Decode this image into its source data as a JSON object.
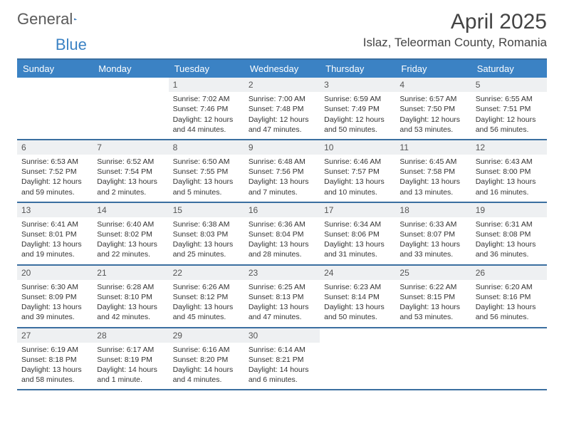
{
  "brand": {
    "part1": "General",
    "part2": "Blue"
  },
  "title": "April 2025",
  "location": "Islaz, Teleorman County, Romania",
  "colors": {
    "header_bg": "#3b82c4",
    "header_fg": "#ffffff",
    "rule": "#3b6fa0",
    "numbar": "#eef0f2",
    "text": "#333333",
    "brand_gray": "#5a5a5a",
    "brand_blue": "#3b82c4"
  },
  "day_names": [
    "Sunday",
    "Monday",
    "Tuesday",
    "Wednesday",
    "Thursday",
    "Friday",
    "Saturday"
  ],
  "weeks": [
    [
      null,
      null,
      {
        "n": "1",
        "sr": "7:02 AM",
        "ss": "7:46 PM",
        "dl": "12 hours and 44 minutes."
      },
      {
        "n": "2",
        "sr": "7:00 AM",
        "ss": "7:48 PM",
        "dl": "12 hours and 47 minutes."
      },
      {
        "n": "3",
        "sr": "6:59 AM",
        "ss": "7:49 PM",
        "dl": "12 hours and 50 minutes."
      },
      {
        "n": "4",
        "sr": "6:57 AM",
        "ss": "7:50 PM",
        "dl": "12 hours and 53 minutes."
      },
      {
        "n": "5",
        "sr": "6:55 AM",
        "ss": "7:51 PM",
        "dl": "12 hours and 56 minutes."
      }
    ],
    [
      {
        "n": "6",
        "sr": "6:53 AM",
        "ss": "7:52 PM",
        "dl": "12 hours and 59 minutes."
      },
      {
        "n": "7",
        "sr": "6:52 AM",
        "ss": "7:54 PM",
        "dl": "13 hours and 2 minutes."
      },
      {
        "n": "8",
        "sr": "6:50 AM",
        "ss": "7:55 PM",
        "dl": "13 hours and 5 minutes."
      },
      {
        "n": "9",
        "sr": "6:48 AM",
        "ss": "7:56 PM",
        "dl": "13 hours and 7 minutes."
      },
      {
        "n": "10",
        "sr": "6:46 AM",
        "ss": "7:57 PM",
        "dl": "13 hours and 10 minutes."
      },
      {
        "n": "11",
        "sr": "6:45 AM",
        "ss": "7:58 PM",
        "dl": "13 hours and 13 minutes."
      },
      {
        "n": "12",
        "sr": "6:43 AM",
        "ss": "8:00 PM",
        "dl": "13 hours and 16 minutes."
      }
    ],
    [
      {
        "n": "13",
        "sr": "6:41 AM",
        "ss": "8:01 PM",
        "dl": "13 hours and 19 minutes."
      },
      {
        "n": "14",
        "sr": "6:40 AM",
        "ss": "8:02 PM",
        "dl": "13 hours and 22 minutes."
      },
      {
        "n": "15",
        "sr": "6:38 AM",
        "ss": "8:03 PM",
        "dl": "13 hours and 25 minutes."
      },
      {
        "n": "16",
        "sr": "6:36 AM",
        "ss": "8:04 PM",
        "dl": "13 hours and 28 minutes."
      },
      {
        "n": "17",
        "sr": "6:34 AM",
        "ss": "8:06 PM",
        "dl": "13 hours and 31 minutes."
      },
      {
        "n": "18",
        "sr": "6:33 AM",
        "ss": "8:07 PM",
        "dl": "13 hours and 33 minutes."
      },
      {
        "n": "19",
        "sr": "6:31 AM",
        "ss": "8:08 PM",
        "dl": "13 hours and 36 minutes."
      }
    ],
    [
      {
        "n": "20",
        "sr": "6:30 AM",
        "ss": "8:09 PM",
        "dl": "13 hours and 39 minutes."
      },
      {
        "n": "21",
        "sr": "6:28 AM",
        "ss": "8:10 PM",
        "dl": "13 hours and 42 minutes."
      },
      {
        "n": "22",
        "sr": "6:26 AM",
        "ss": "8:12 PM",
        "dl": "13 hours and 45 minutes."
      },
      {
        "n": "23",
        "sr": "6:25 AM",
        "ss": "8:13 PM",
        "dl": "13 hours and 47 minutes."
      },
      {
        "n": "24",
        "sr": "6:23 AM",
        "ss": "8:14 PM",
        "dl": "13 hours and 50 minutes."
      },
      {
        "n": "25",
        "sr": "6:22 AM",
        "ss": "8:15 PM",
        "dl": "13 hours and 53 minutes."
      },
      {
        "n": "26",
        "sr": "6:20 AM",
        "ss": "8:16 PM",
        "dl": "13 hours and 56 minutes."
      }
    ],
    [
      {
        "n": "27",
        "sr": "6:19 AM",
        "ss": "8:18 PM",
        "dl": "13 hours and 58 minutes."
      },
      {
        "n": "28",
        "sr": "6:17 AM",
        "ss": "8:19 PM",
        "dl": "14 hours and 1 minute."
      },
      {
        "n": "29",
        "sr": "6:16 AM",
        "ss": "8:20 PM",
        "dl": "14 hours and 4 minutes."
      },
      {
        "n": "30",
        "sr": "6:14 AM",
        "ss": "8:21 PM",
        "dl": "14 hours and 6 minutes."
      },
      null,
      null,
      null
    ]
  ]
}
